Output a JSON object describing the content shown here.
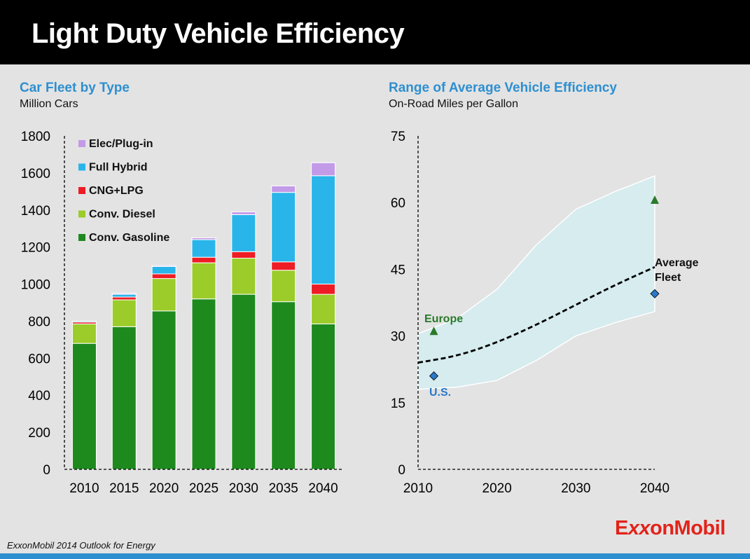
{
  "title": "Light Duty Vehicle Efficiency",
  "source": "ExxonMobil 2014 Outlook for Energy",
  "logo": "ExxonMobil",
  "colors": {
    "Conv. Gasoline": "#1e8a1e",
    "Conv. Diesel": "#9bcc2a",
    "CNG+LPG": "#ee1c25",
    "Full Hybrid": "#29b5ea",
    "Elec/Plug-in": "#c39ae8",
    "range_fill": "#d6ecef",
    "europe": "#2a7a2a",
    "us": "#2a78c8"
  },
  "chart_data": [
    {
      "type": "bar",
      "stacked": true,
      "title": "Car Fleet by Type",
      "subtitle": "Million Cars",
      "categories": [
        "2010",
        "2015",
        "2020",
        "2025",
        "2030",
        "2035",
        "2040"
      ],
      "ylim": [
        0,
        1800
      ],
      "yticks": [
        "0",
        "200",
        "400",
        "600",
        "800",
        "1000",
        "1200",
        "1400",
        "1600",
        "1800"
      ],
      "legend_position": "top-left",
      "series": [
        {
          "name": "Conv. Gasoline",
          "values": [
            680,
            770,
            855,
            920,
            945,
            905,
            785
          ]
        },
        {
          "name": "Conv. Diesel",
          "values": [
            105,
            145,
            175,
            195,
            195,
            170,
            160
          ]
        },
        {
          "name": "CNG+LPG",
          "values": [
            10,
            15,
            25,
            30,
            35,
            45,
            55
          ]
        },
        {
          "name": "Full Hybrid",
          "values": [
            5,
            15,
            40,
            95,
            200,
            375,
            585
          ]
        },
        {
          "name": "Elec/Plug-in",
          "values": [
            0,
            5,
            5,
            10,
            15,
            35,
            70
          ]
        }
      ],
      "legend_order": [
        "Elec/Plug-in",
        "Full Hybrid",
        "CNG+LPG",
        "Conv. Diesel",
        "Conv. Gasoline"
      ]
    },
    {
      "type": "area",
      "title": "Range of Average Vehicle Efficiency",
      "subtitle": "On-Road Miles per Gallon",
      "xlim": [
        2010,
        2040
      ],
      "ylim": [
        0,
        75
      ],
      "xticks": [
        "2010",
        "2020",
        "2030",
        "2040"
      ],
      "yticks": [
        "0",
        "15",
        "30",
        "45",
        "60",
        "75"
      ],
      "range_upper": [
        [
          2010,
          30.5
        ],
        [
          2015,
          34
        ],
        [
          2020,
          40.5
        ],
        [
          2025,
          50.5
        ],
        [
          2030,
          58.5
        ],
        [
          2035,
          62.5
        ],
        [
          2040,
          66
        ]
      ],
      "range_lower": [
        [
          2010,
          18
        ],
        [
          2015,
          18.5
        ],
        [
          2020,
          20
        ],
        [
          2025,
          24.5
        ],
        [
          2030,
          30
        ],
        [
          2035,
          33
        ],
        [
          2040,
          35.5
        ]
      ],
      "average_fleet": {
        "name": "Average Fleet",
        "points": [
          [
            2010,
            24
          ],
          [
            2015,
            25.5
          ],
          [
            2020,
            28.5
          ],
          [
            2025,
            32.5
          ],
          [
            2030,
            37
          ],
          [
            2035,
            41.5
          ],
          [
            2040,
            45.5
          ]
        ]
      },
      "europe": {
        "name": "Europe",
        "points": [
          [
            2012,
            31
          ],
          [
            2040,
            60.5
          ]
        ]
      },
      "us": {
        "name": "U.S.",
        "points": [
          [
            2012,
            21
          ],
          [
            2040,
            39.5
          ]
        ]
      },
      "labels": {
        "average_line1": "Average",
        "average_line2": "Fleet",
        "europe": "Europe",
        "us": "U.S."
      }
    }
  ]
}
